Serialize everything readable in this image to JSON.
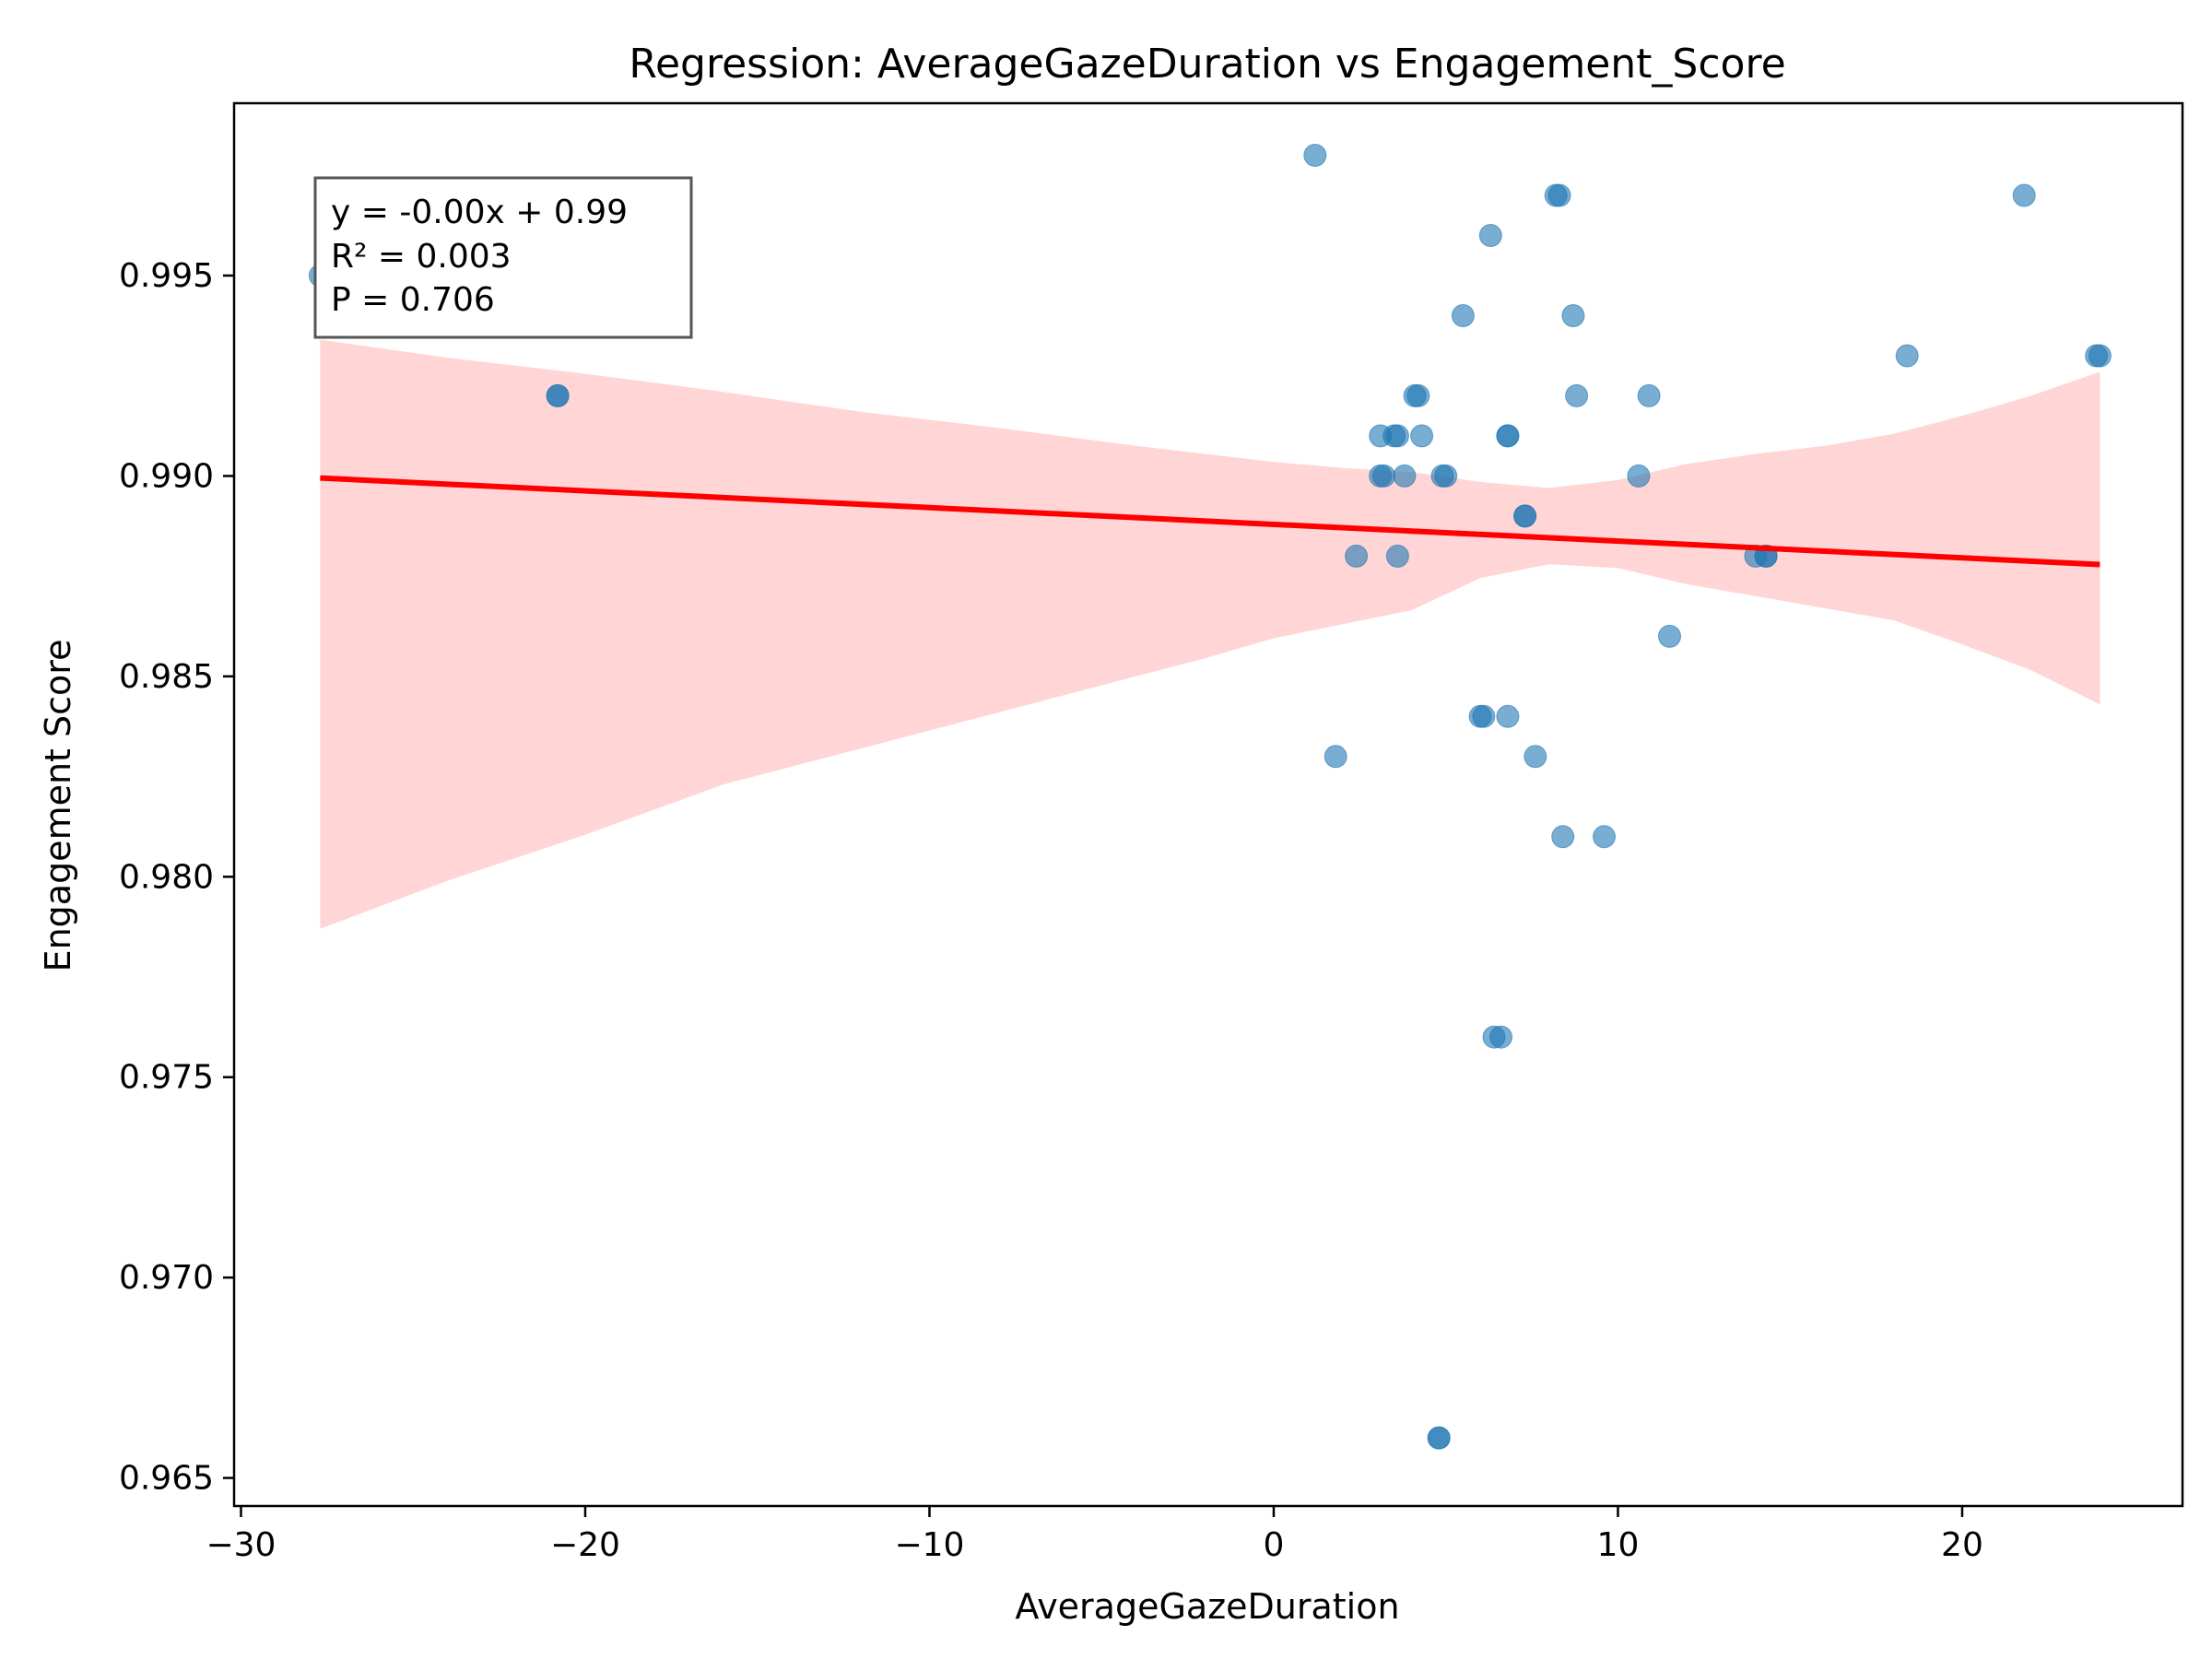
{
  "chart_data": {
    "type": "scatter",
    "title": "Regression: AverageGazeDuration vs Engagement_Score",
    "xlabel": "AverageGazeDuration",
    "ylabel": "Engagement Score",
    "xlim": [
      -30.2,
      26.4
    ],
    "ylim": [
      0.9643,
      0.9993
    ],
    "xticks": [
      -30,
      -20,
      -10,
      0,
      10,
      20
    ],
    "xtick_labels": [
      "−30",
      "−20",
      "−10",
      "0",
      "10",
      "20"
    ],
    "yticks": [
      0.965,
      0.97,
      0.975,
      0.98,
      0.985,
      0.99,
      0.995
    ],
    "ytick_labels": [
      "0.965",
      "0.970",
      "0.975",
      "0.980",
      "0.985",
      "0.990",
      "0.995"
    ],
    "grid": false,
    "series": [
      {
        "name": "observations",
        "color": "#1f77b4",
        "points": [
          {
            "x": -27.7,
            "y": 0.995
          },
          {
            "x": -20.8,
            "y": 0.992
          },
          {
            "x": -20.8,
            "y": 0.992
          },
          {
            "x": 1.2,
            "y": 0.998
          },
          {
            "x": 1.8,
            "y": 0.983
          },
          {
            "x": 2.4,
            "y": 0.988
          },
          {
            "x": 3.1,
            "y": 0.991
          },
          {
            "x": 3.1,
            "y": 0.99
          },
          {
            "x": 3.2,
            "y": 0.99
          },
          {
            "x": 3.5,
            "y": 0.991
          },
          {
            "x": 3.6,
            "y": 0.991
          },
          {
            "x": 3.6,
            "y": 0.988
          },
          {
            "x": 3.8,
            "y": 0.99
          },
          {
            "x": 4.1,
            "y": 0.992
          },
          {
            "x": 4.2,
            "y": 0.992
          },
          {
            "x": 4.3,
            "y": 0.991
          },
          {
            "x": 4.8,
            "y": 0.966
          },
          {
            "x": 4.8,
            "y": 0.966
          },
          {
            "x": 4.9,
            "y": 0.99
          },
          {
            "x": 5.0,
            "y": 0.99
          },
          {
            "x": 5.5,
            "y": 0.994
          },
          {
            "x": 6.0,
            "y": 0.984
          },
          {
            "x": 6.1,
            "y": 0.984
          },
          {
            "x": 6.3,
            "y": 0.996
          },
          {
            "x": 6.4,
            "y": 0.976
          },
          {
            "x": 6.6,
            "y": 0.976
          },
          {
            "x": 6.8,
            "y": 0.991
          },
          {
            "x": 6.8,
            "y": 0.991
          },
          {
            "x": 6.8,
            "y": 0.984
          },
          {
            "x": 7.3,
            "y": 0.989
          },
          {
            "x": 7.3,
            "y": 0.989
          },
          {
            "x": 7.6,
            "y": 0.983
          },
          {
            "x": 8.2,
            "y": 0.997
          },
          {
            "x": 8.3,
            "y": 0.997
          },
          {
            "x": 8.4,
            "y": 0.981
          },
          {
            "x": 8.7,
            "y": 0.994
          },
          {
            "x": 8.8,
            "y": 0.992
          },
          {
            "x": 9.6,
            "y": 0.981
          },
          {
            "x": 10.6,
            "y": 0.99
          },
          {
            "x": 10.9,
            "y": 0.992
          },
          {
            "x": 11.5,
            "y": 0.986
          },
          {
            "x": 14.0,
            "y": 0.988
          },
          {
            "x": 14.3,
            "y": 0.988
          },
          {
            "x": 14.3,
            "y": 0.988
          },
          {
            "x": 18.4,
            "y": 0.993
          },
          {
            "x": 21.8,
            "y": 0.997
          },
          {
            "x": 23.9,
            "y": 0.993
          },
          {
            "x": 24.0,
            "y": 0.993
          }
        ]
      }
    ],
    "regression_line": {
      "color": "#ff0000",
      "x": [
        -27.7,
        24.0
      ],
      "y": [
        0.98995,
        0.98779
      ]
    },
    "confidence_band": {
      "color": "#ffb3b3",
      "x": [
        -27.7,
        -24,
        -20,
        -16,
        -12,
        -8,
        -4,
        -2,
        0,
        2,
        4,
        6,
        8,
        10,
        12,
        14,
        16,
        18,
        20,
        22,
        24.0
      ],
      "upper": [
        0.9934,
        0.99295,
        0.99255,
        0.9921,
        0.9916,
        0.9912,
        0.99075,
        0.99055,
        0.99035,
        0.9902,
        0.9901,
        0.98985,
        0.9897,
        0.9899,
        0.9903,
        0.99055,
        0.99075,
        0.99105,
        0.9915,
        0.992,
        0.9926
      ],
      "lower": [
        0.9787,
        0.9799,
        0.98105,
        0.9823,
        0.9832,
        0.9841,
        0.985,
        0.98545,
        0.98595,
        0.9863,
        0.98665,
        0.98745,
        0.9878,
        0.9877,
        0.9873,
        0.987,
        0.9867,
        0.9864,
        0.9858,
        0.98515,
        0.9843
      ]
    },
    "annotation": {
      "position": "top-left",
      "lines": [
        "y = -0.00x + 0.99",
        "R² = 0.003",
        "P = 0.706"
      ]
    }
  }
}
